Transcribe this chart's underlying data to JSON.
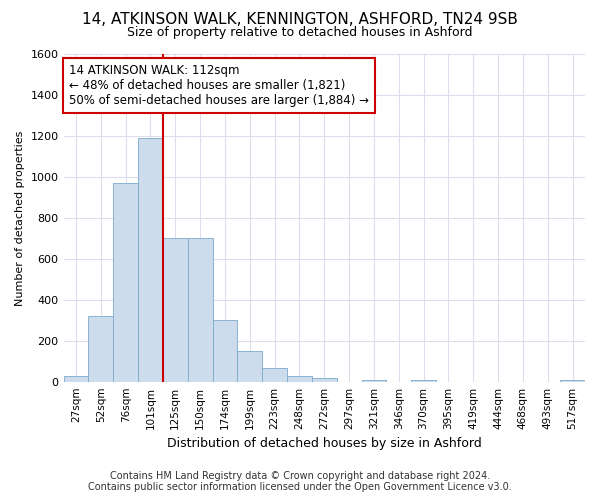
{
  "title1": "14, ATKINSON WALK, KENNINGTON, ASHFORD, TN24 9SB",
  "title2": "Size of property relative to detached houses in Ashford",
  "xlabel": "Distribution of detached houses by size in Ashford",
  "ylabel": "Number of detached properties",
  "footer1": "Contains HM Land Registry data © Crown copyright and database right 2024.",
  "footer2": "Contains public sector information licensed under the Open Government Licence v3.0.",
  "annotation_line1": "14 ATKINSON WALK: 112sqm",
  "annotation_line2": "← 48% of detached houses are smaller (1,821)",
  "annotation_line3": "50% of semi-detached houses are larger (1,884) →",
  "bar_labels": [
    "27sqm",
    "52sqm",
    "76sqm",
    "101sqm",
    "125sqm",
    "150sqm",
    "174sqm",
    "199sqm",
    "223sqm",
    "248sqm",
    "272sqm",
    "297sqm",
    "321sqm",
    "346sqm",
    "370sqm",
    "395sqm",
    "419sqm",
    "444sqm",
    "468sqm",
    "493sqm",
    "517sqm"
  ],
  "bar_values": [
    30,
    320,
    970,
    1190,
    700,
    700,
    300,
    150,
    65,
    30,
    20,
    0,
    10,
    0,
    10,
    0,
    0,
    0,
    0,
    0,
    10
  ],
  "bar_color": "#ccdcec",
  "bar_edge_color": "#7aaacc",
  "vline_x": 3.5,
  "vline_color": "#cc0000",
  "ylim": [
    0,
    1600
  ],
  "yticks": [
    0,
    200,
    400,
    600,
    800,
    1000,
    1200,
    1400,
    1600
  ],
  "background_color": "#ffffff",
  "grid_color": "#ddddee",
  "annotation_box_facecolor": "#ffffff",
  "annotation_box_edgecolor": "#cc0000",
  "title1_fontsize": 11,
  "title2_fontsize": 9,
  "ylabel_fontsize": 8,
  "xlabel_fontsize": 9,
  "tick_fontsize": 8,
  "xtick_fontsize": 7.5,
  "footer_fontsize": 7
}
